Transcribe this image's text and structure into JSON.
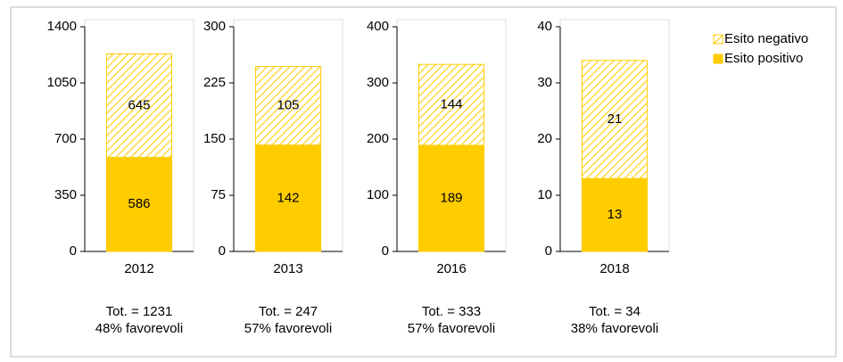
{
  "chart_data": [
    {
      "type": "bar",
      "stacked": true,
      "categories": [
        "2012"
      ],
      "ylim": [
        0,
        1400
      ],
      "yticks": [
        0,
        350,
        700,
        1050,
        1400
      ],
      "series": [
        {
          "name": "Esito positivo",
          "color": "#ffcc00",
          "pattern": "solid",
          "values": [
            586
          ]
        },
        {
          "name": "Esito negativo",
          "color": "#ffcc00",
          "pattern": "hatch",
          "values": [
            645
          ]
        }
      ],
      "annotations": [
        "Tot. = 1231",
        "48% favorevoli"
      ]
    },
    {
      "type": "bar",
      "stacked": true,
      "categories": [
        "2013"
      ],
      "ylim": [
        0,
        300
      ],
      "yticks": [
        0,
        75,
        150,
        225,
        300
      ],
      "series": [
        {
          "color": "#ffcc00",
          "pattern": "solid",
          "values": [
            142
          ]
        },
        {
          "color": "#ffcc00",
          "pattern": "hatch",
          "values": [
            105
          ]
        }
      ],
      "annotations": [
        "Tot. = 247",
        "57% favorevoli"
      ]
    },
    {
      "type": "bar",
      "stacked": true,
      "categories": [
        "2016"
      ],
      "ylim": [
        0,
        400
      ],
      "yticks": [
        0,
        100,
        200,
        300,
        400
      ],
      "series": [
        {
          "color": "#ffcc00",
          "pattern": "solid",
          "values": [
            189
          ]
        },
        {
          "color": "#ffcc00",
          "pattern": "hatch",
          "values": [
            144
          ]
        }
      ],
      "annotations": [
        "Tot. = 333",
        "57% favorevoli"
      ]
    },
    {
      "type": "bar",
      "stacked": true,
      "categories": [
        "2018"
      ],
      "ylim": [
        0,
        40
      ],
      "yticks": [
        0,
        10,
        20,
        30,
        40
      ],
      "series": [
        {
          "color": "#ffcc00",
          "pattern": "solid",
          "values": [
            13
          ]
        },
        {
          "color": "#ffcc00",
          "pattern": "hatch",
          "values": [
            21
          ]
        }
      ],
      "annotations": [
        "Tot. = 34",
        "38% favorevoli"
      ]
    }
  ]
}
